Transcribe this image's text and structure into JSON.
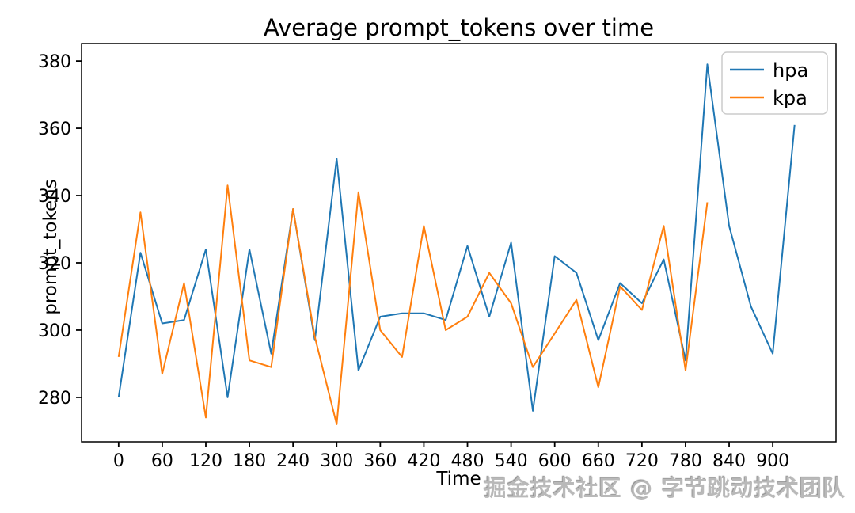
{
  "chart_data": {
    "type": "line",
    "title": "Average prompt_tokens over time",
    "xlabel": "Time",
    "ylabel": "prompt_tokens",
    "grid": false,
    "legend_position": "upper right",
    "xlim": [
      -51,
      987
    ],
    "ylim": [
      266.8,
      385.2
    ],
    "xticks": [
      0,
      60,
      120,
      180,
      240,
      300,
      360,
      420,
      480,
      540,
      600,
      660,
      720,
      780,
      840,
      900
    ],
    "yticks": [
      280,
      300,
      320,
      340,
      360,
      380
    ],
    "x_step": 30,
    "series": [
      {
        "name": "hpa",
        "color": "#1f77b4",
        "x": [
          0,
          30,
          60,
          90,
          120,
          150,
          180,
          210,
          240,
          270,
          300,
          330,
          360,
          390,
          420,
          450,
          480,
          510,
          540,
          570,
          600,
          630,
          660,
          690,
          720,
          750,
          780,
          810,
          840,
          870,
          900,
          930
        ],
        "values": [
          280,
          323,
          302,
          303,
          324,
          280,
          324,
          293,
          336,
          297,
          351,
          288,
          304,
          305,
          305,
          303,
          325,
          304,
          326,
          276,
          322,
          317,
          297,
          314,
          308,
          321,
          291,
          379,
          331,
          307,
          293,
          361
        ]
      },
      {
        "name": "kpa",
        "color": "#ff7f0e",
        "x": [
          0,
          30,
          60,
          90,
          120,
          150,
          180,
          210,
          240,
          270,
          300,
          330,
          360,
          390,
          420,
          450,
          480,
          510,
          540,
          570,
          600,
          630,
          660,
          690,
          720,
          750,
          780,
          810
        ],
        "values": [
          292,
          335,
          287,
          314,
          274,
          343,
          291,
          289,
          336,
          298,
          272,
          341,
          300,
          292,
          331,
          300,
          304,
          317,
          308,
          289,
          299,
          309,
          283,
          313,
          306,
          331,
          288,
          338
        ]
      }
    ],
    "axis_color": "#000000",
    "tick_font_size": 22,
    "legend_font_size": 24
  },
  "watermark": {
    "text": "掘金技术社区 @ 字节跳动技术团队"
  }
}
